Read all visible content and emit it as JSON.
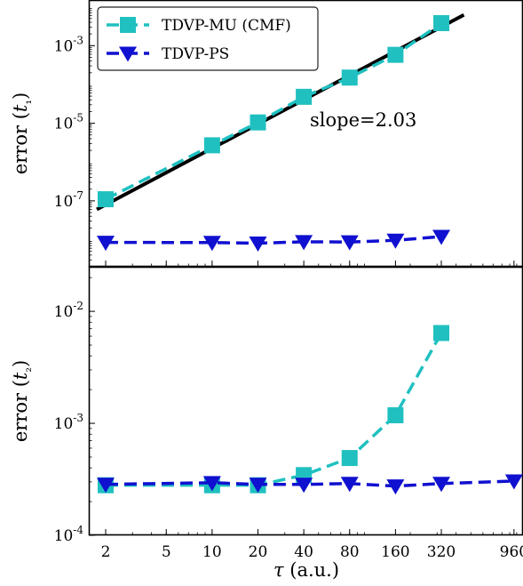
{
  "chart_data": {
    "type": "line",
    "xlabel": "τ (a.u.)",
    "x_scale": "log",
    "x_ticks": [
      2,
      5,
      10,
      20,
      40,
      80,
      160,
      320,
      960
    ],
    "x_tick_labels": [
      "2",
      "5",
      "10",
      "20",
      "40",
      "80",
      "160",
      "320",
      "960"
    ],
    "xlim": [
      1.55,
      1100
    ],
    "panels": [
      {
        "ylabel": "error (t₁)",
        "y_scale": "log",
        "ylim": [
          2e-09,
          0.015
        ],
        "y_ticks": [
          1e-07,
          1e-05,
          0.001
        ],
        "y_tick_labels": [
          {
            "base": "10",
            "exp": "-7"
          },
          {
            "base": "10",
            "exp": "-5"
          },
          {
            "base": "10",
            "exp": "-3"
          }
        ],
        "legend_location": "upper-left",
        "series": [
          {
            "name": "TDVP-MU (CMF)",
            "color": "#20c0c0",
            "marker": "square",
            "linestyle": "dashed",
            "x": [
              2,
              10,
              20,
              40,
              80,
              160,
              320
            ],
            "y": [
              1.1e-07,
              2.7e-06,
              1.05e-05,
              4.8e-05,
              0.00015,
              0.00058,
              0.0038
            ]
          },
          {
            "name": "TDVP-PS",
            "color": "#1010d0",
            "marker": "triangle-down",
            "linestyle": "dashed",
            "x": [
              2,
              10,
              20,
              40,
              80,
              160,
              320
            ],
            "y": [
              8.5e-09,
              8.4e-09,
              8.1e-09,
              8.8e-09,
              8.7e-09,
              9.6e-09,
              1.2e-08
            ]
          }
        ],
        "fit_line": {
          "color": "#000000",
          "x": [
            1.75,
            450
          ],
          "y": [
            6e-08,
            0.0062
          ]
        },
        "annotation": "slope=2.03"
      },
      {
        "ylabel": "error (t₂)",
        "y_scale": "log",
        "ylim": [
          0.0001,
          0.025
        ],
        "y_ticks": [
          0.0001,
          0.001,
          0.01
        ],
        "y_tick_labels": [
          {
            "base": "10",
            "exp": "-4"
          },
          {
            "base": "10",
            "exp": "-3"
          },
          {
            "base": "10",
            "exp": "-2"
          }
        ],
        "series": [
          {
            "name": "TDVP-MU (CMF)",
            "color": "#20c0c0",
            "marker": "square",
            "linestyle": "dashed",
            "x": [
              2,
              10,
              20,
              40,
              80,
              160,
              320
            ],
            "y": [
              0.00028,
              0.00028,
              0.00028,
              0.000345,
              0.00049,
              0.00118,
              0.0064
            ]
          },
          {
            "name": "TDVP-PS",
            "color": "#1010d0",
            "marker": "triangle-down",
            "linestyle": "dashed",
            "x": [
              2,
              10,
              20,
              40,
              80,
              160,
              320,
              960
            ],
            "y": [
              0.000285,
              0.000295,
              0.000285,
              0.000285,
              0.00029,
              0.000275,
              0.00029,
              0.000305
            ]
          }
        ]
      }
    ]
  }
}
